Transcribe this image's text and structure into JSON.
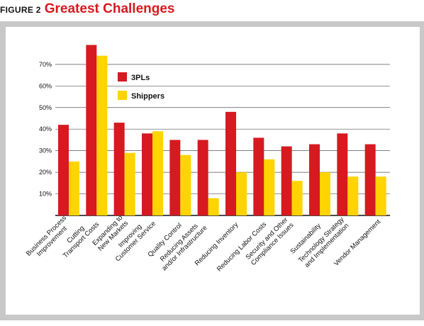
{
  "figure": {
    "label": "FIGURE 2",
    "title": "Greatest Challenges"
  },
  "chart_data": {
    "type": "bar",
    "title": "Greatest Challenges",
    "xlabel": "",
    "ylabel": "",
    "ylim": [
      0,
      80
    ],
    "ytick_labels": [
      "10%",
      "20%",
      "30%",
      "40%",
      "50%",
      "60%",
      "70%"
    ],
    "grid": true,
    "legend_position": "top-left",
    "categories": [
      [
        "Business Process",
        "Improvement"
      ],
      [
        "Cutting",
        "Transport Costs"
      ],
      [
        "Expanding to",
        "New Markets"
      ],
      [
        "Improving",
        "Customer Service"
      ],
      [
        "Quality Control"
      ],
      [
        "Reducing Assets",
        "and/or Infrastructure"
      ],
      [
        "Reducing Inventory"
      ],
      [
        "Reducing Labor Costs"
      ],
      [
        "Security and Other",
        "Compliance Issues"
      ],
      [
        "Sustainability"
      ],
      [
        "Technology Strategy",
        "and Implementation"
      ],
      [
        "Vendor Management"
      ]
    ],
    "series": [
      {
        "name": "3PLs",
        "color": "#d71920",
        "values": [
          42,
          79,
          43,
          38,
          35,
          35,
          48,
          36,
          32,
          33,
          38,
          33
        ]
      },
      {
        "name": "Shippers",
        "color": "#ffd400",
        "values": [
          25,
          74,
          29,
          39,
          28,
          8,
          20,
          26,
          16,
          20,
          18,
          18
        ]
      }
    ]
  }
}
